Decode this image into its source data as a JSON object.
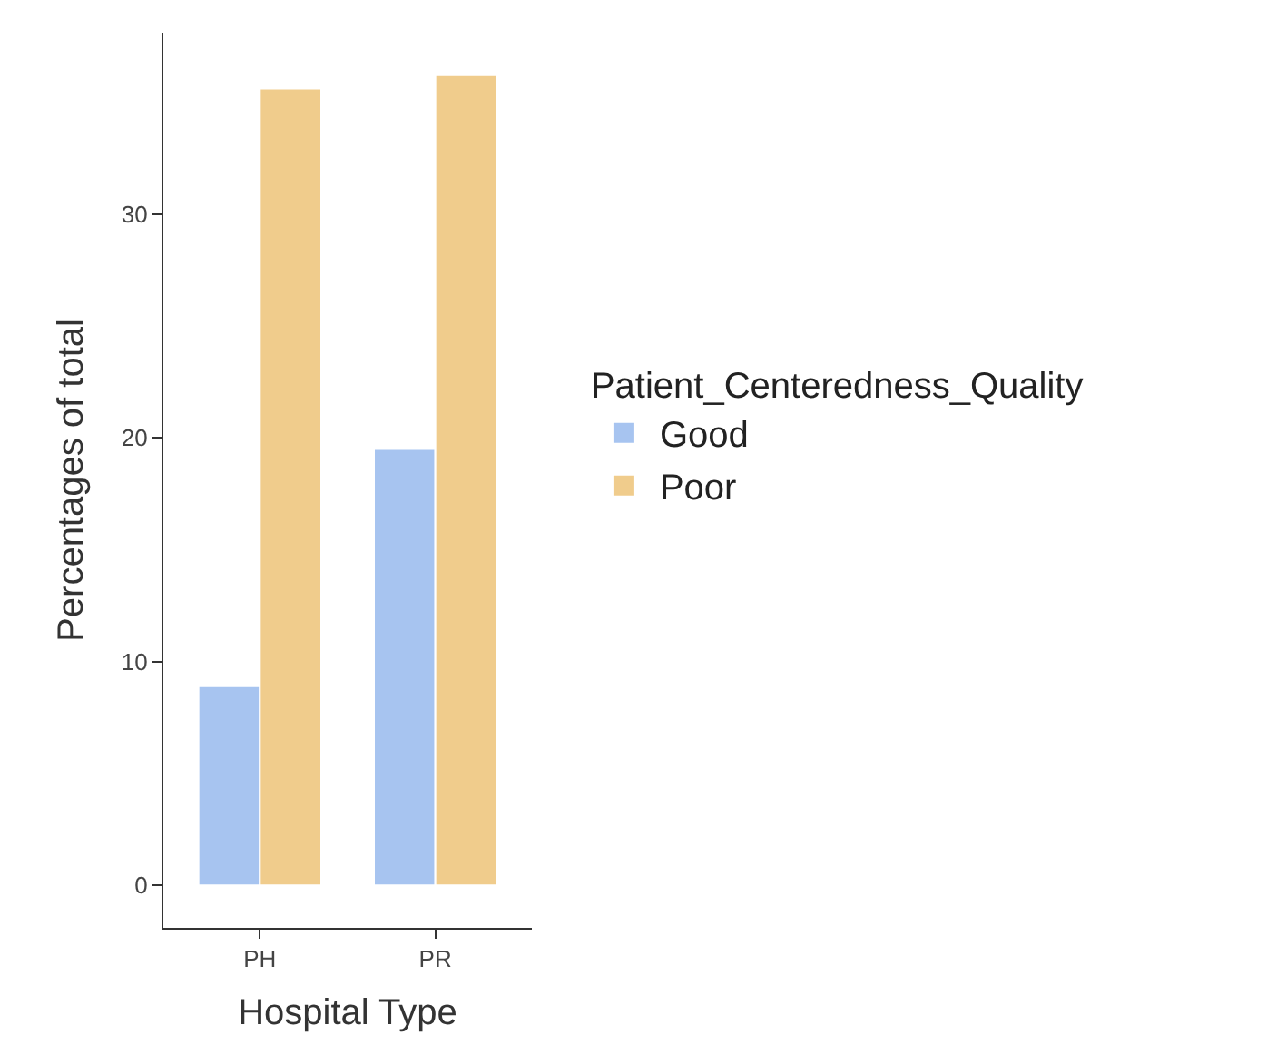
{
  "chart_data": {
    "type": "bar",
    "xlabel": "Hospital Type",
    "ylabel": "Percentages of total",
    "legend_title": "Patient_Centeredness_Quality",
    "categories": [
      "PH",
      "PR"
    ],
    "series": [
      {
        "name": "Good",
        "color": "#a7c4f0",
        "values": [
          8.9,
          19.5
        ]
      },
      {
        "name": "Poor",
        "color": "#f0cc8c",
        "values": [
          35.6,
          36.2
        ]
      }
    ],
    "ylim": [
      -1.9,
      38.1
    ],
    "yticks": [
      0,
      10,
      20,
      30
    ],
    "legend": "right"
  }
}
